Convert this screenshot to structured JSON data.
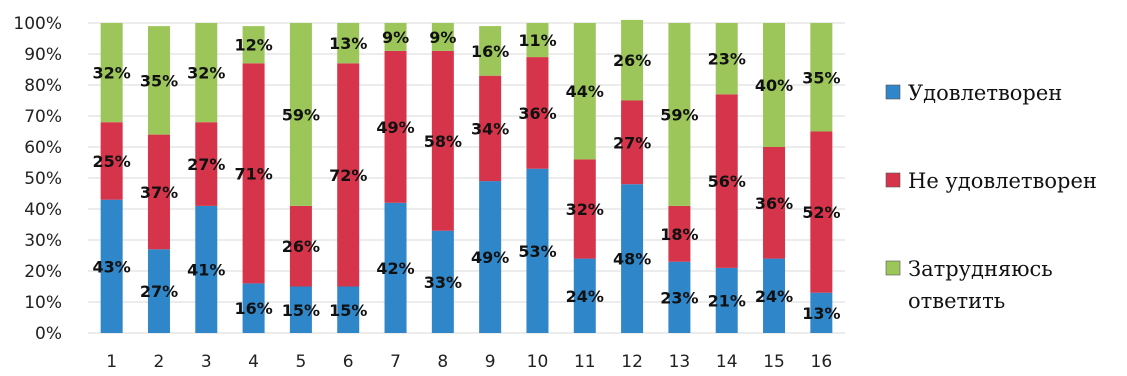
{
  "chart_data": {
    "type": "bar",
    "stacked": true,
    "percent": true,
    "categories": [
      "1",
      "2",
      "3",
      "4",
      "5",
      "6",
      "7",
      "8",
      "9",
      "10",
      "11",
      "12",
      "13",
      "14",
      "15",
      "16"
    ],
    "series": [
      {
        "name": "Удовлетворен",
        "color": "#2f86c8",
        "values": [
          43,
          27,
          41,
          16,
          15,
          15,
          42,
          33,
          49,
          53,
          24,
          48,
          23,
          21,
          24,
          13
        ],
        "labels": [
          "43%",
          "27%",
          "41%",
          "16%",
          "15%",
          "15%",
          "42%",
          "33%",
          "49%",
          "53%",
          "24%",
          "48%",
          "23%",
          "21%",
          "24%",
          "13%"
        ]
      },
      {
        "name": "Не удовлетворен",
        "color": "#d5344a",
        "values": [
          25,
          37,
          27,
          71,
          26,
          72,
          49,
          58,
          34,
          36,
          32,
          27,
          18,
          56,
          36,
          52
        ],
        "labels": [
          "25%",
          "37%",
          "27%",
          "71%",
          "26%",
          "72%",
          "49%",
          "58%",
          "34%",
          "36%",
          "32%",
          "27%",
          "18%",
          "56%",
          "36%",
          "52%"
        ]
      },
      {
        "name": "Затрудняюсь ответить",
        "color": "#9cc65a",
        "values": [
          32,
          35,
          32,
          12,
          59,
          13,
          9,
          9,
          16,
          11,
          44,
          26,
          59,
          23,
          40,
          35
        ],
        "labels": [
          "32%",
          "35%",
          "32%",
          "12%",
          "59%",
          "13%",
          "9%",
          "9%",
          "16%",
          "11%",
          "44%",
          "26%",
          "59%",
          "23%",
          "40%",
          "35%"
        ]
      }
    ],
    "y_ticks": [
      "0%",
      "10%",
      "20%",
      "30%",
      "40%",
      "50%",
      "60%",
      "70%",
      "80%",
      "90%",
      "100%"
    ],
    "ylim": [
      0,
      100
    ],
    "grid": true,
    "legend_position": "right"
  },
  "legend": [
    {
      "lines": [
        "Удовлетворен"
      ]
    },
    {
      "lines": [
        "Не удовлетворен"
      ]
    },
    {
      "lines": [
        "Затрудняюсь",
        "ответить"
      ]
    }
  ]
}
